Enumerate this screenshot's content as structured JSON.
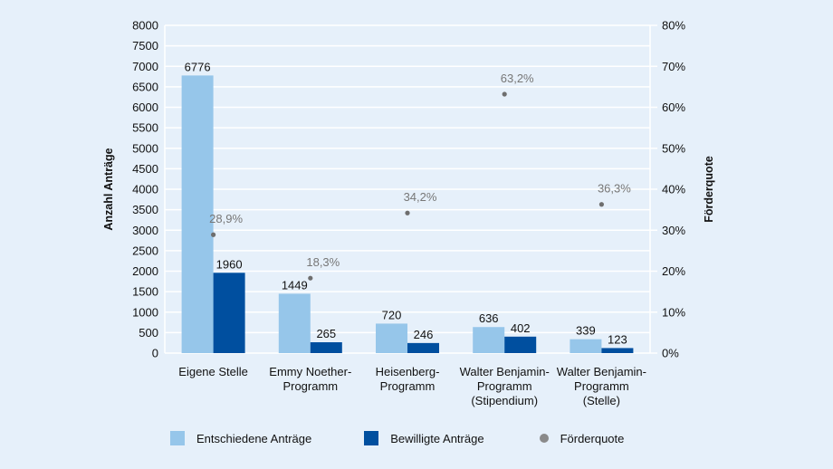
{
  "chart_data": {
    "type": "bar",
    "title": "",
    "categories": [
      [
        "Eigene Stelle"
      ],
      [
        "Emmy Noether-",
        "Programm"
      ],
      [
        "Heisenberg-",
        "Programm"
      ],
      [
        "Walter Benjamin-",
        "Programm",
        "(Stipendium)"
      ],
      [
        "Walter Benjamin-",
        "Programm",
        "(Stelle)"
      ]
    ],
    "series": [
      {
        "name": "Entschiedene Anträge",
        "type": "bar",
        "axis": "left",
        "color": "#96c6ea",
        "values": [
          6776,
          1449,
          720,
          636,
          339
        ]
      },
      {
        "name": "Bewilligte Anträge",
        "type": "bar",
        "axis": "left",
        "color": "#004f9f",
        "values": [
          1960,
          265,
          246,
          402,
          123
        ]
      },
      {
        "name": "Förderquote",
        "type": "scatter",
        "axis": "right",
        "color": "#8a8a8a",
        "values": [
          28.9,
          18.3,
          34.2,
          63.2,
          36.3
        ],
        "labels": [
          "28,9%",
          "18,3%",
          "34,2%",
          "63,2%",
          "36,3%"
        ]
      }
    ],
    "ylabel": "Anzahl Anträge",
    "ylim": [
      0,
      8000
    ],
    "yticks": [
      "0",
      "500",
      "1000",
      "1500",
      "2000",
      "2500",
      "3000",
      "3500",
      "4000",
      "4500",
      "5000",
      "5500",
      "6000",
      "6500",
      "7000",
      "7500",
      "8000"
    ],
    "y2label": "Förderquote",
    "y2lim": [
      0,
      80
    ],
    "y2ticks": [
      "0%",
      "10%",
      "20%",
      "30%",
      "40%",
      "50%",
      "60%",
      "70%",
      "80%"
    ],
    "grid": true,
    "legend_position": "bottom"
  }
}
